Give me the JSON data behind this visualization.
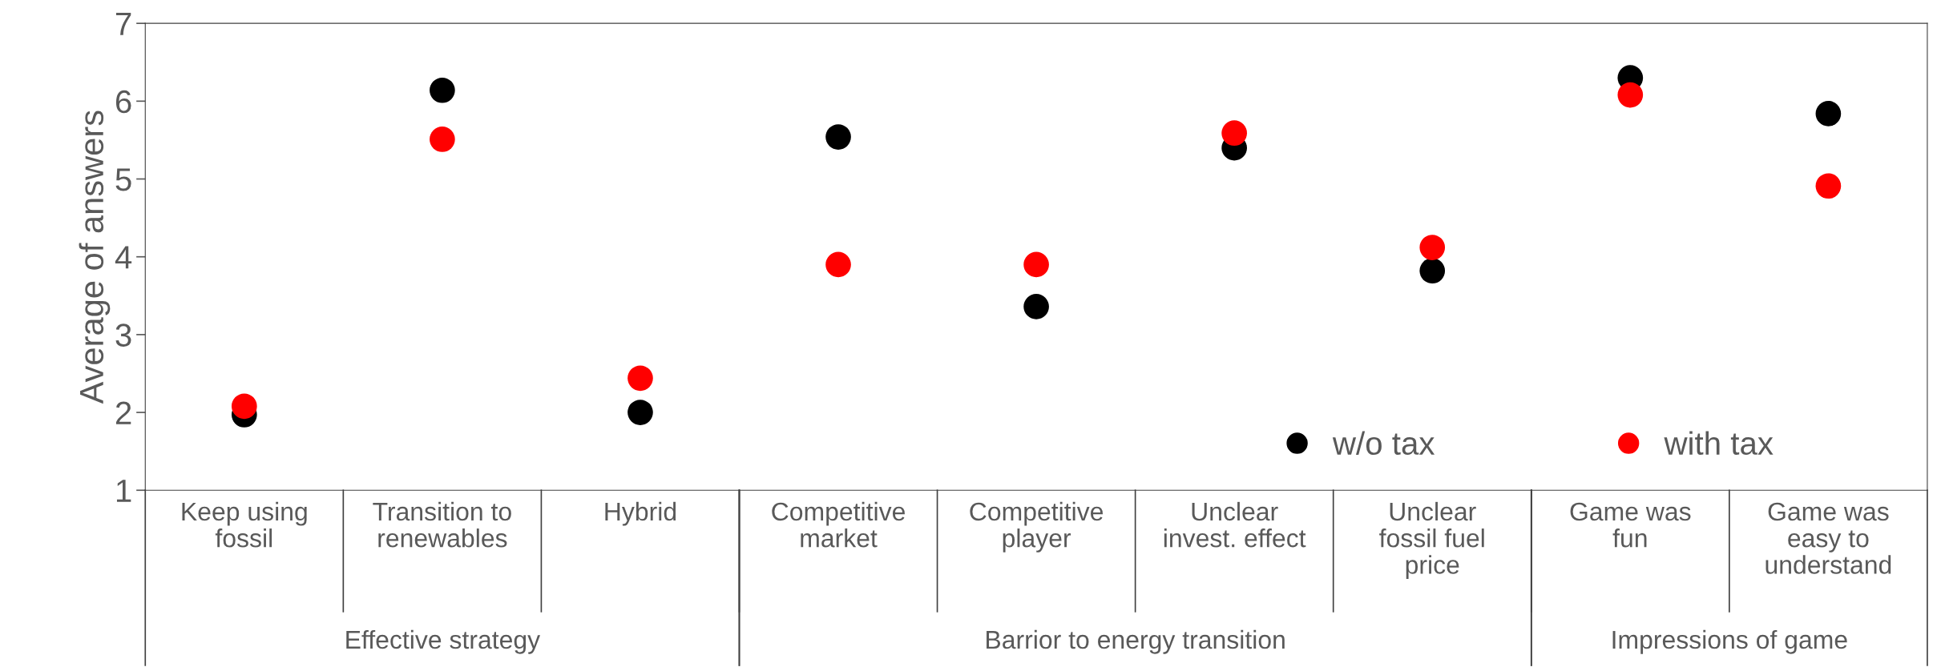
{
  "chart_data": {
    "type": "scatter",
    "ylabel": "Average of answers",
    "categories": [
      "Keep using\nfossil",
      "Transition to\nrenewables",
      "Hybrid",
      "Competitive\nmarket",
      "Competitive\nplayer",
      "Unclear\ninvest. effect",
      "Unclear\nfossil fuel\nprice",
      "Game was\nfun",
      "Game was\neasy to\nunderstand"
    ],
    "series": [
      {
        "name": "w/o tax",
        "color": "#000000",
        "values": [
          1.97,
          6.14,
          2.0,
          5.54,
          3.36,
          5.4,
          3.82,
          6.3,
          5.84
        ]
      },
      {
        "name": "with tax",
        "color": "#ff0000",
        "values": [
          2.08,
          5.51,
          2.44,
          3.9,
          3.9,
          5.59,
          4.12,
          6.08,
          4.91
        ]
      }
    ],
    "annotations": [
      "Effective strategy",
      "Barrior to energy transition",
      "Impressions of game"
    ],
    "ylim": [
      1,
      7
    ],
    "yticks": [
      1,
      2,
      3,
      4,
      5,
      6,
      7
    ],
    "marker": "circle",
    "legend": "bottom right",
    "grid": false
  }
}
